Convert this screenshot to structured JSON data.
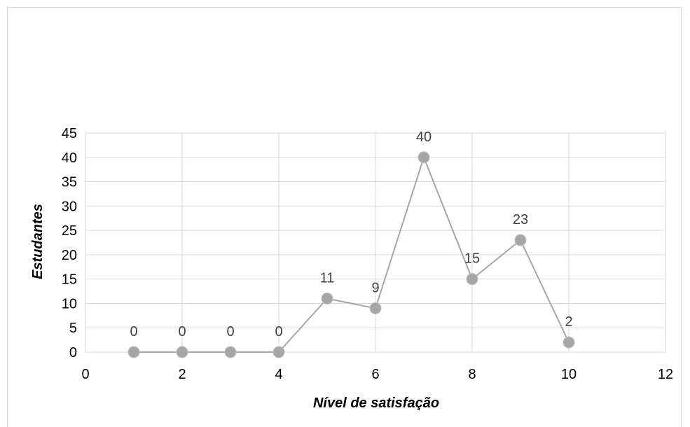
{
  "chart_data": {
    "type": "scatter",
    "title": "",
    "xlabel": "Nível de satisfação",
    "ylabel": "Estudantes",
    "xlim": [
      0,
      12
    ],
    "ylim": [
      0,
      45
    ],
    "x_ticks": [
      "0",
      "2",
      "4",
      "6",
      "8",
      "10",
      "12"
    ],
    "y_ticks": [
      "0",
      "5",
      "10",
      "15",
      "20",
      "25",
      "30",
      "35",
      "40",
      "45"
    ],
    "grid": true,
    "legend": "none",
    "series": [
      {
        "x": [
          1,
          2,
          3,
          4,
          5,
          6,
          7,
          8,
          9,
          10
        ],
        "y": [
          0,
          0,
          0,
          0,
          11,
          9,
          40,
          15,
          23,
          2
        ],
        "labels": [
          "0",
          "0",
          "0",
          "0",
          "11",
          "9",
          "40",
          "15",
          "23",
          "2"
        ],
        "color": "#a6a6a6",
        "marker_color": "#a6a6a6"
      }
    ]
  }
}
